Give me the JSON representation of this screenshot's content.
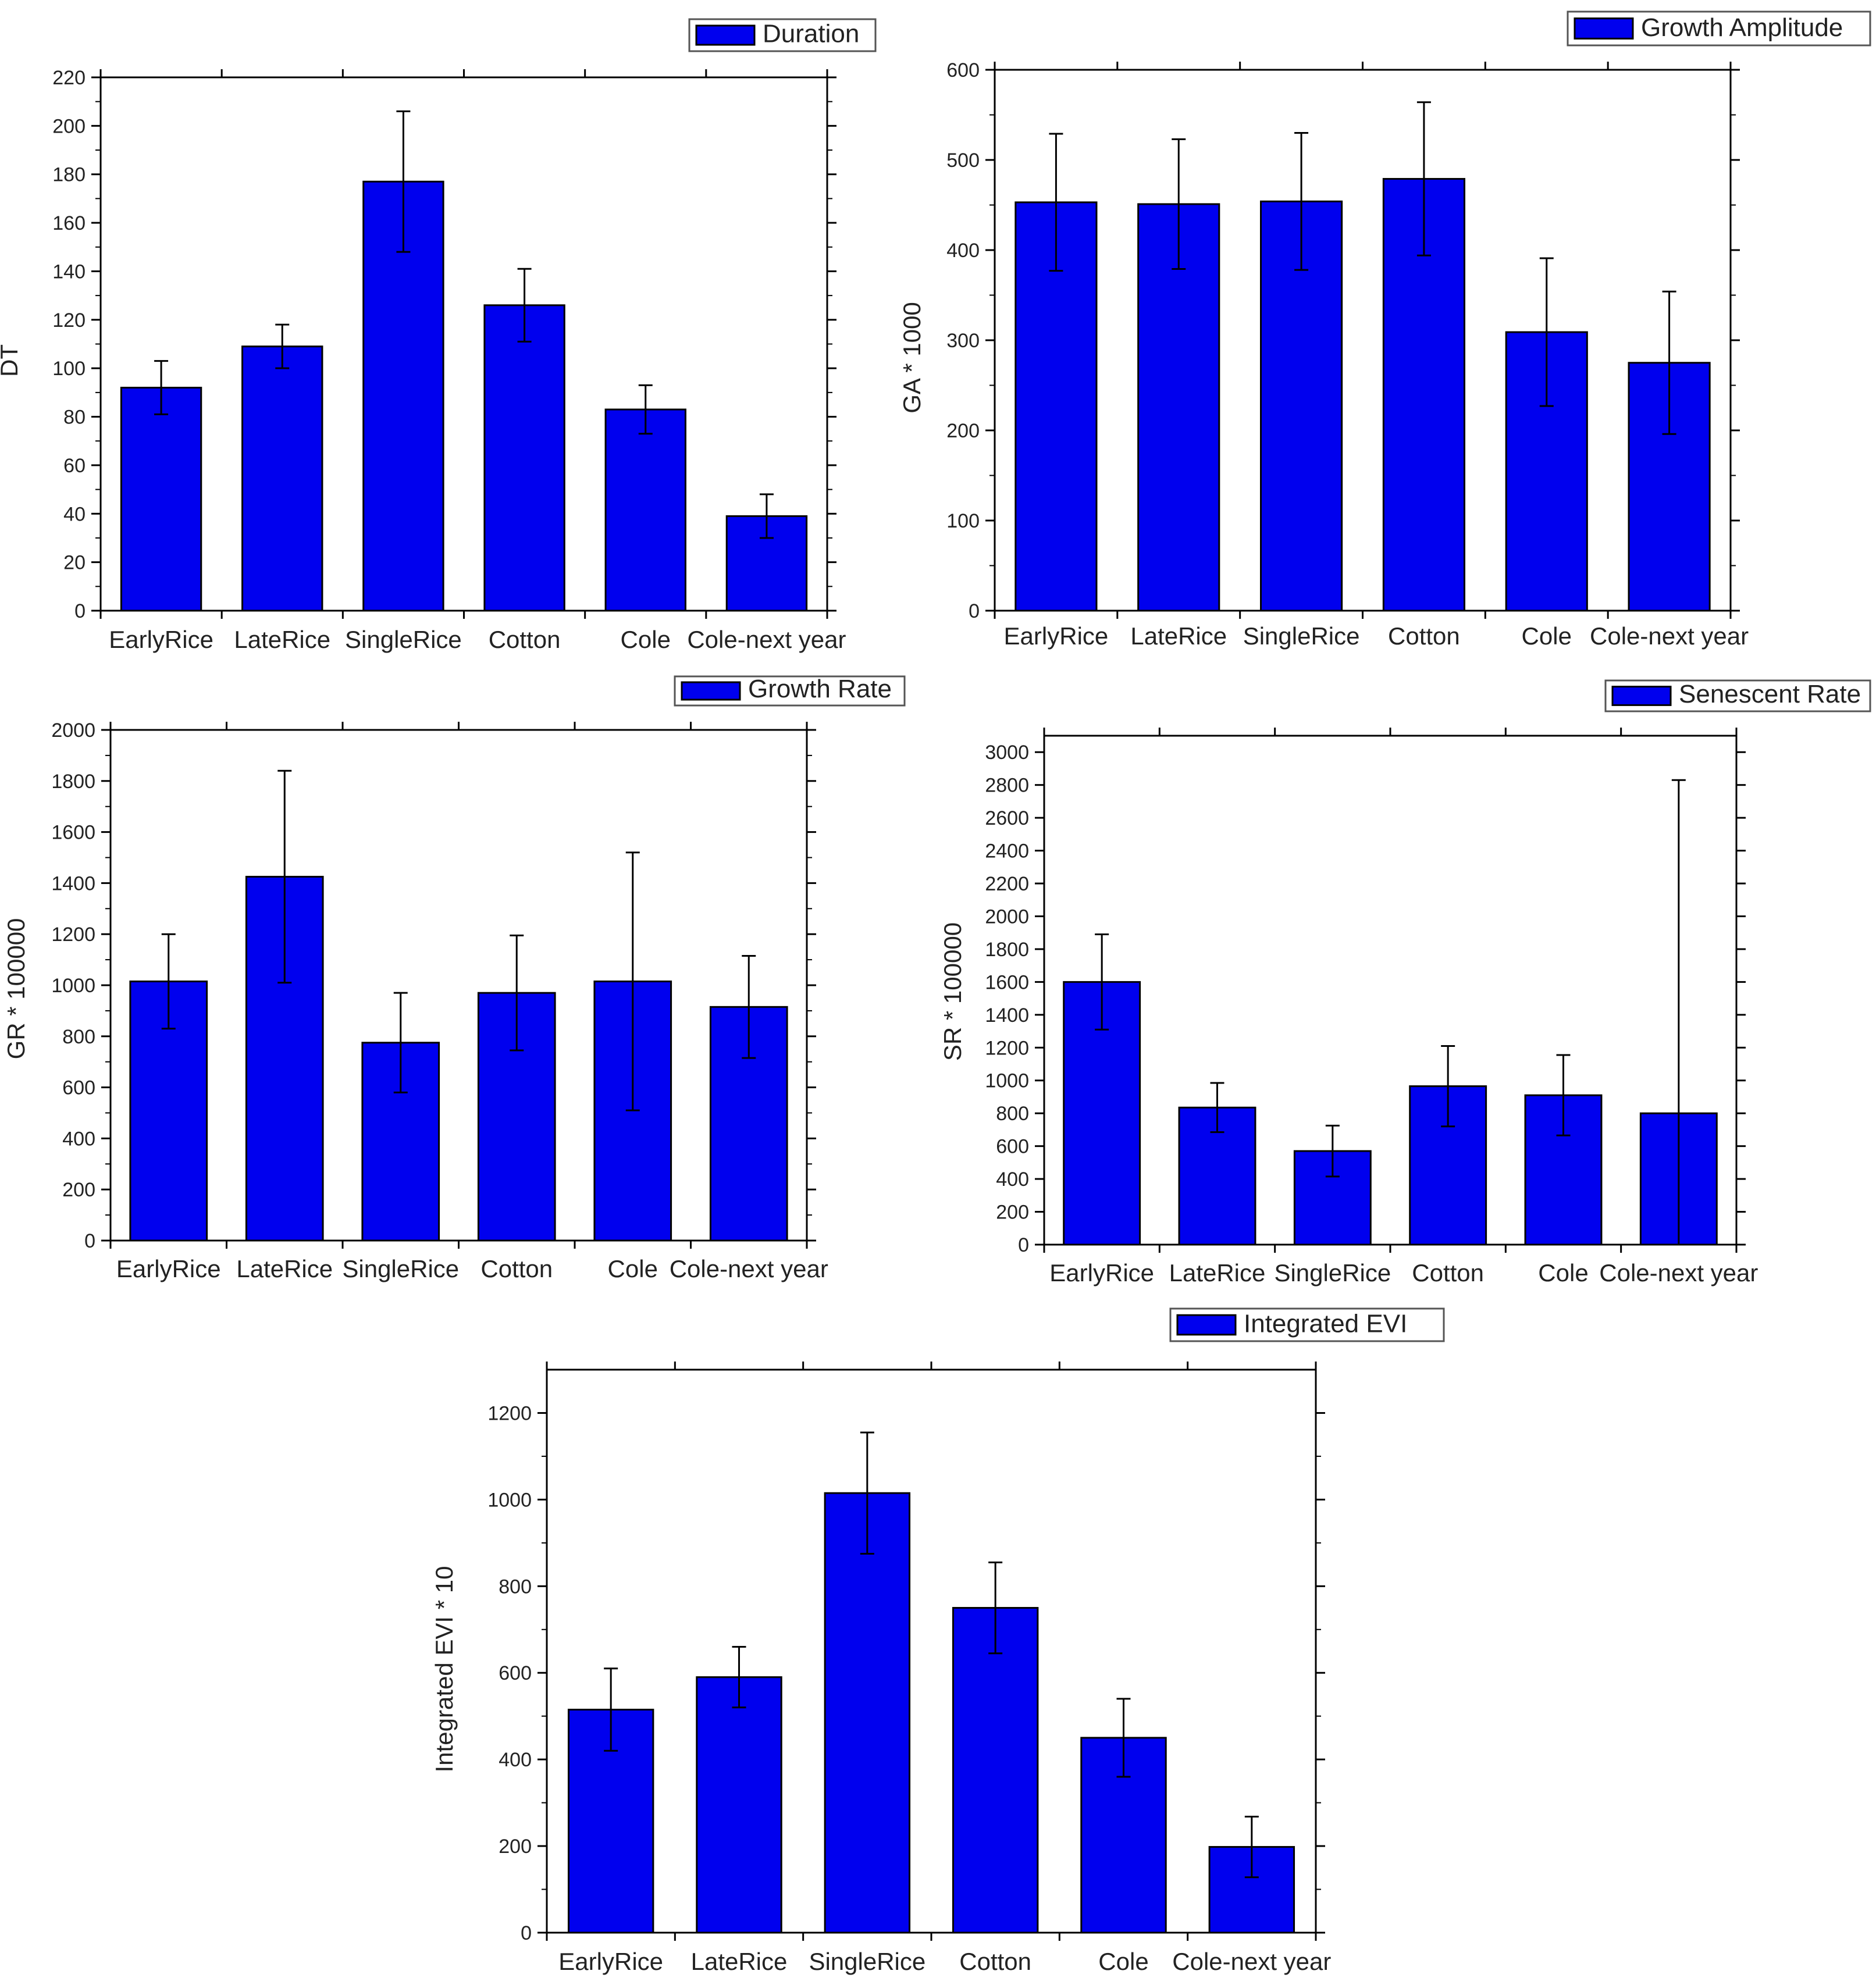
{
  "colors": {
    "bar": "#0000ee",
    "bar_stroke": "#000000",
    "axis": "#000000",
    "error_bar": "#000000"
  },
  "chart_data": [
    {
      "type": "bar",
      "id": "duration",
      "legend": "Duration",
      "ylabel": "DT",
      "xlabel": "",
      "categories": [
        "EarlyRice",
        "LateRice",
        "SingleRice",
        "Cotton",
        "Cole",
        "Cole-next year"
      ],
      "values": [
        92,
        109,
        177,
        126,
        83,
        39
      ],
      "errors": [
        11,
        9,
        29,
        15,
        10,
        9
      ],
      "ylim": [
        0,
        220
      ],
      "yticks": [
        0,
        20,
        40,
        60,
        80,
        100,
        120,
        140,
        160,
        180,
        200,
        220
      ]
    },
    {
      "type": "bar",
      "id": "growth_amplitude",
      "legend": "Growth Amplitude",
      "ylabel": "GA * 1000",
      "xlabel": "",
      "categories": [
        "EarlyRice",
        "LateRice",
        "SingleRice",
        "Cotton",
        "Cole",
        "Cole-next year"
      ],
      "values": [
        453,
        451,
        454,
        479,
        309,
        275
      ],
      "errors": [
        76,
        72,
        76,
        85,
        82,
        79
      ],
      "ylim": [
        0,
        600
      ],
      "yticks": [
        0,
        100,
        200,
        300,
        400,
        500,
        600
      ]
    },
    {
      "type": "bar",
      "id": "growth_rate",
      "legend": "Growth Rate",
      "ylabel": "GR * 100000",
      "xlabel": "",
      "categories": [
        "EarlyRice",
        "LateRice",
        "SingleRice",
        "Cotton",
        "Cole",
        "Cole-next year"
      ],
      "values": [
        1015,
        1425,
        775,
        970,
        1015,
        915
      ],
      "errors": [
        185,
        415,
        195,
        225,
        505,
        200
      ],
      "ylim": [
        0,
        2000
      ],
      "yticks": [
        0,
        200,
        400,
        600,
        800,
        1000,
        1200,
        1400,
        1600,
        1800,
        2000
      ]
    },
    {
      "type": "bar",
      "id": "senescent_rate",
      "legend": "Senescent Rate",
      "ylabel": "SR * 100000",
      "xlabel": "",
      "categories": [
        "EarlyRice",
        "LateRice",
        "SingleRice",
        "Cotton",
        "Cole",
        "Cole-next year"
      ],
      "values": [
        1600,
        835,
        570,
        965,
        910,
        800
      ],
      "errors": [
        290,
        150,
        155,
        245,
        245,
        2030
      ],
      "ylim": [
        0,
        3100
      ],
      "yticks": [
        0,
        200,
        400,
        600,
        800,
        1000,
        1200,
        1400,
        1600,
        1800,
        2000,
        2200,
        2400,
        2600,
        2800,
        3000
      ]
    },
    {
      "type": "bar",
      "id": "integrated_evi",
      "legend": "Integrated EVI",
      "ylabel": "Integrated EVI * 10",
      "xlabel": "",
      "categories": [
        "EarlyRice",
        "LateRice",
        "SingleRice",
        "Cotton",
        "Cole",
        "Cole-next year"
      ],
      "values": [
        515,
        590,
        1015,
        750,
        450,
        198
      ],
      "errors": [
        95,
        70,
        140,
        105,
        90,
        70
      ],
      "ylim": [
        0,
        1300
      ],
      "yticks": [
        0,
        200,
        400,
        600,
        800,
        1000,
        1200
      ]
    }
  ]
}
